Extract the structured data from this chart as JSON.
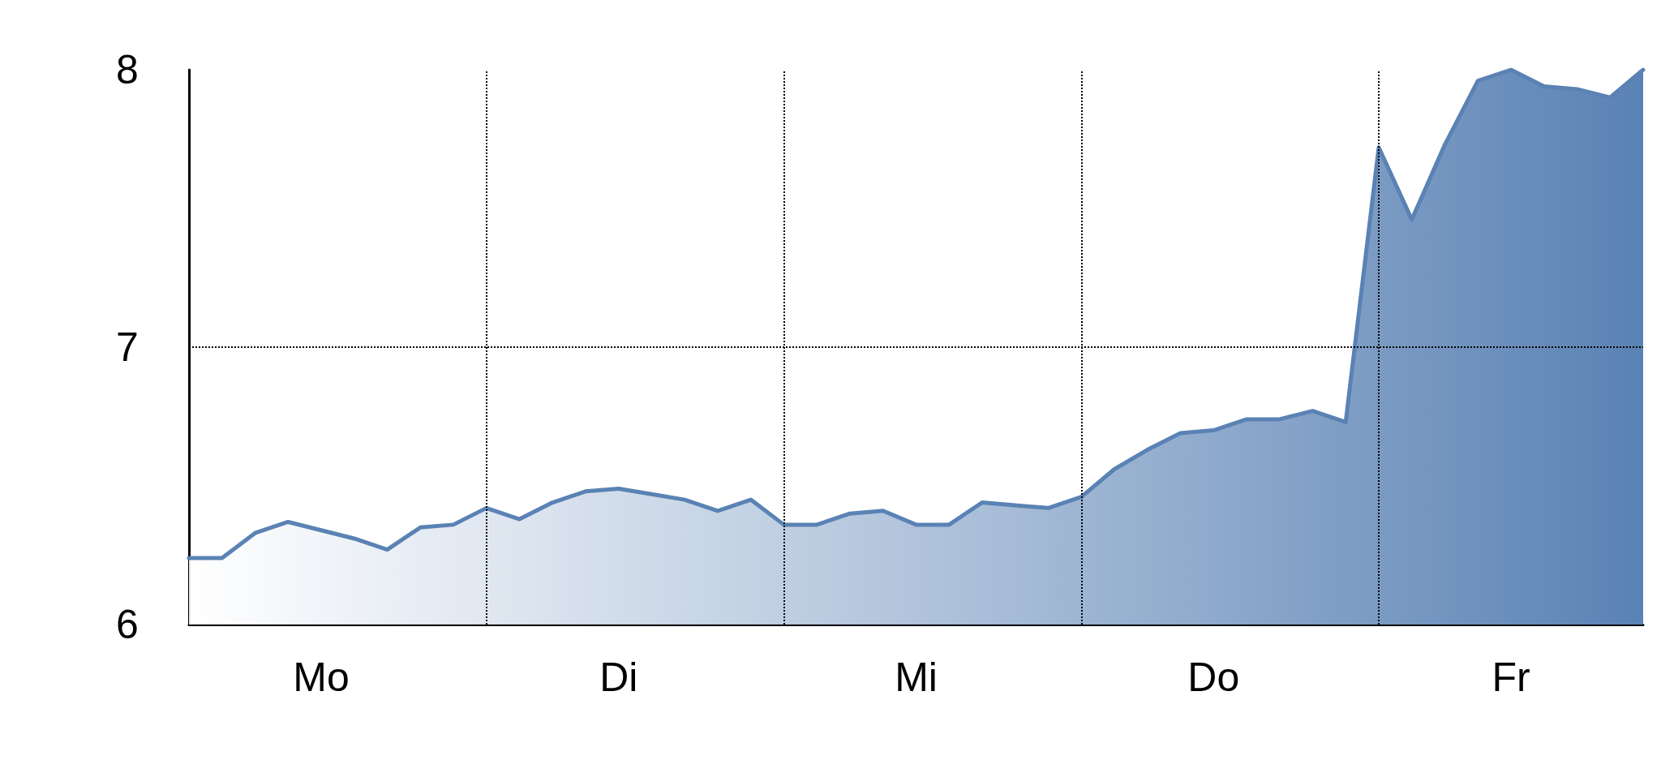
{
  "chart_data": {
    "type": "area",
    "categories": [
      null,
      null,
      null,
      null,
      "Mo",
      null,
      null,
      null,
      null,
      null,
      null,
      null,
      null,
      "Di",
      null,
      null,
      null,
      null,
      null,
      null,
      null,
      null,
      "Mi",
      null,
      null,
      null,
      null,
      null,
      null,
      null,
      null,
      "Do",
      null,
      null,
      null,
      null,
      null,
      null,
      null,
      null,
      "Fr",
      null,
      null,
      null,
      null
    ],
    "series": [
      {
        "color": "#5a82b4",
        "values": [
          6.24,
          6.24,
          6.33,
          6.37,
          6.34,
          6.31,
          6.27,
          6.35,
          6.36,
          6.42,
          6.38,
          6.44,
          6.48,
          6.49,
          6.47,
          6.45,
          6.41,
          6.45,
          6.36,
          6.36,
          6.4,
          6.41,
          6.36,
          6.36,
          6.44,
          6.43,
          6.42,
          6.46,
          6.56,
          6.63,
          6.69,
          6.7,
          6.74,
          6.74,
          6.77,
          6.73,
          7.72,
          7.46,
          7.73,
          7.96,
          8.0,
          7.94,
          7.93,
          7.9,
          8.0
        ]
      }
    ],
    "ylim": [
      6,
      8
    ],
    "yticks": [
      6,
      7,
      8
    ],
    "ref_lines": [
      {
        "axis": "y",
        "value": 7,
        "label": null
      }
    ],
    "line_style": "solid",
    "marker": "none",
    "grid": "x"
  }
}
